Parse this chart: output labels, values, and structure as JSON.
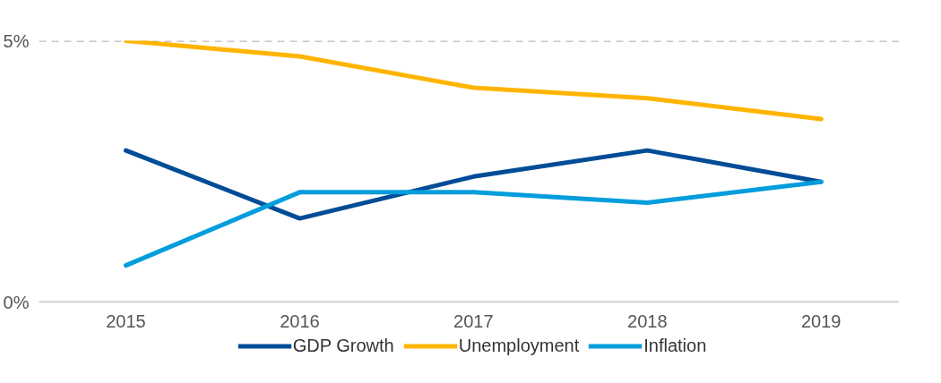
{
  "chart_data": {
    "type": "line",
    "x": [
      2015,
      2016,
      2017,
      2018,
      2019
    ],
    "xlim": [
      2014.5,
      2019.45
    ],
    "xticks": [
      2015,
      2016,
      2017,
      2018,
      2019
    ],
    "ylim": [
      0,
      5
    ],
    "yticks": [
      {
        "value": 0,
        "label": "0%"
      },
      {
        "value": 5,
        "label": "5%"
      }
    ],
    "grid": "y",
    "legend": "bottom",
    "line_style": "solid",
    "marker": "none",
    "series": [
      {
        "name": "GDP Growth",
        "color": "#004c97",
        "values": [
          2.9,
          1.6,
          2.4,
          2.9,
          2.3
        ]
      },
      {
        "name": "Unemployment",
        "color": "#ffb400",
        "values": [
          5.0,
          4.7,
          4.1,
          3.9,
          3.5
        ]
      },
      {
        "name": "Inflation",
        "color": "#009ddc",
        "values": [
          0.7,
          2.1,
          2.1,
          1.9,
          2.3
        ]
      }
    ]
  }
}
